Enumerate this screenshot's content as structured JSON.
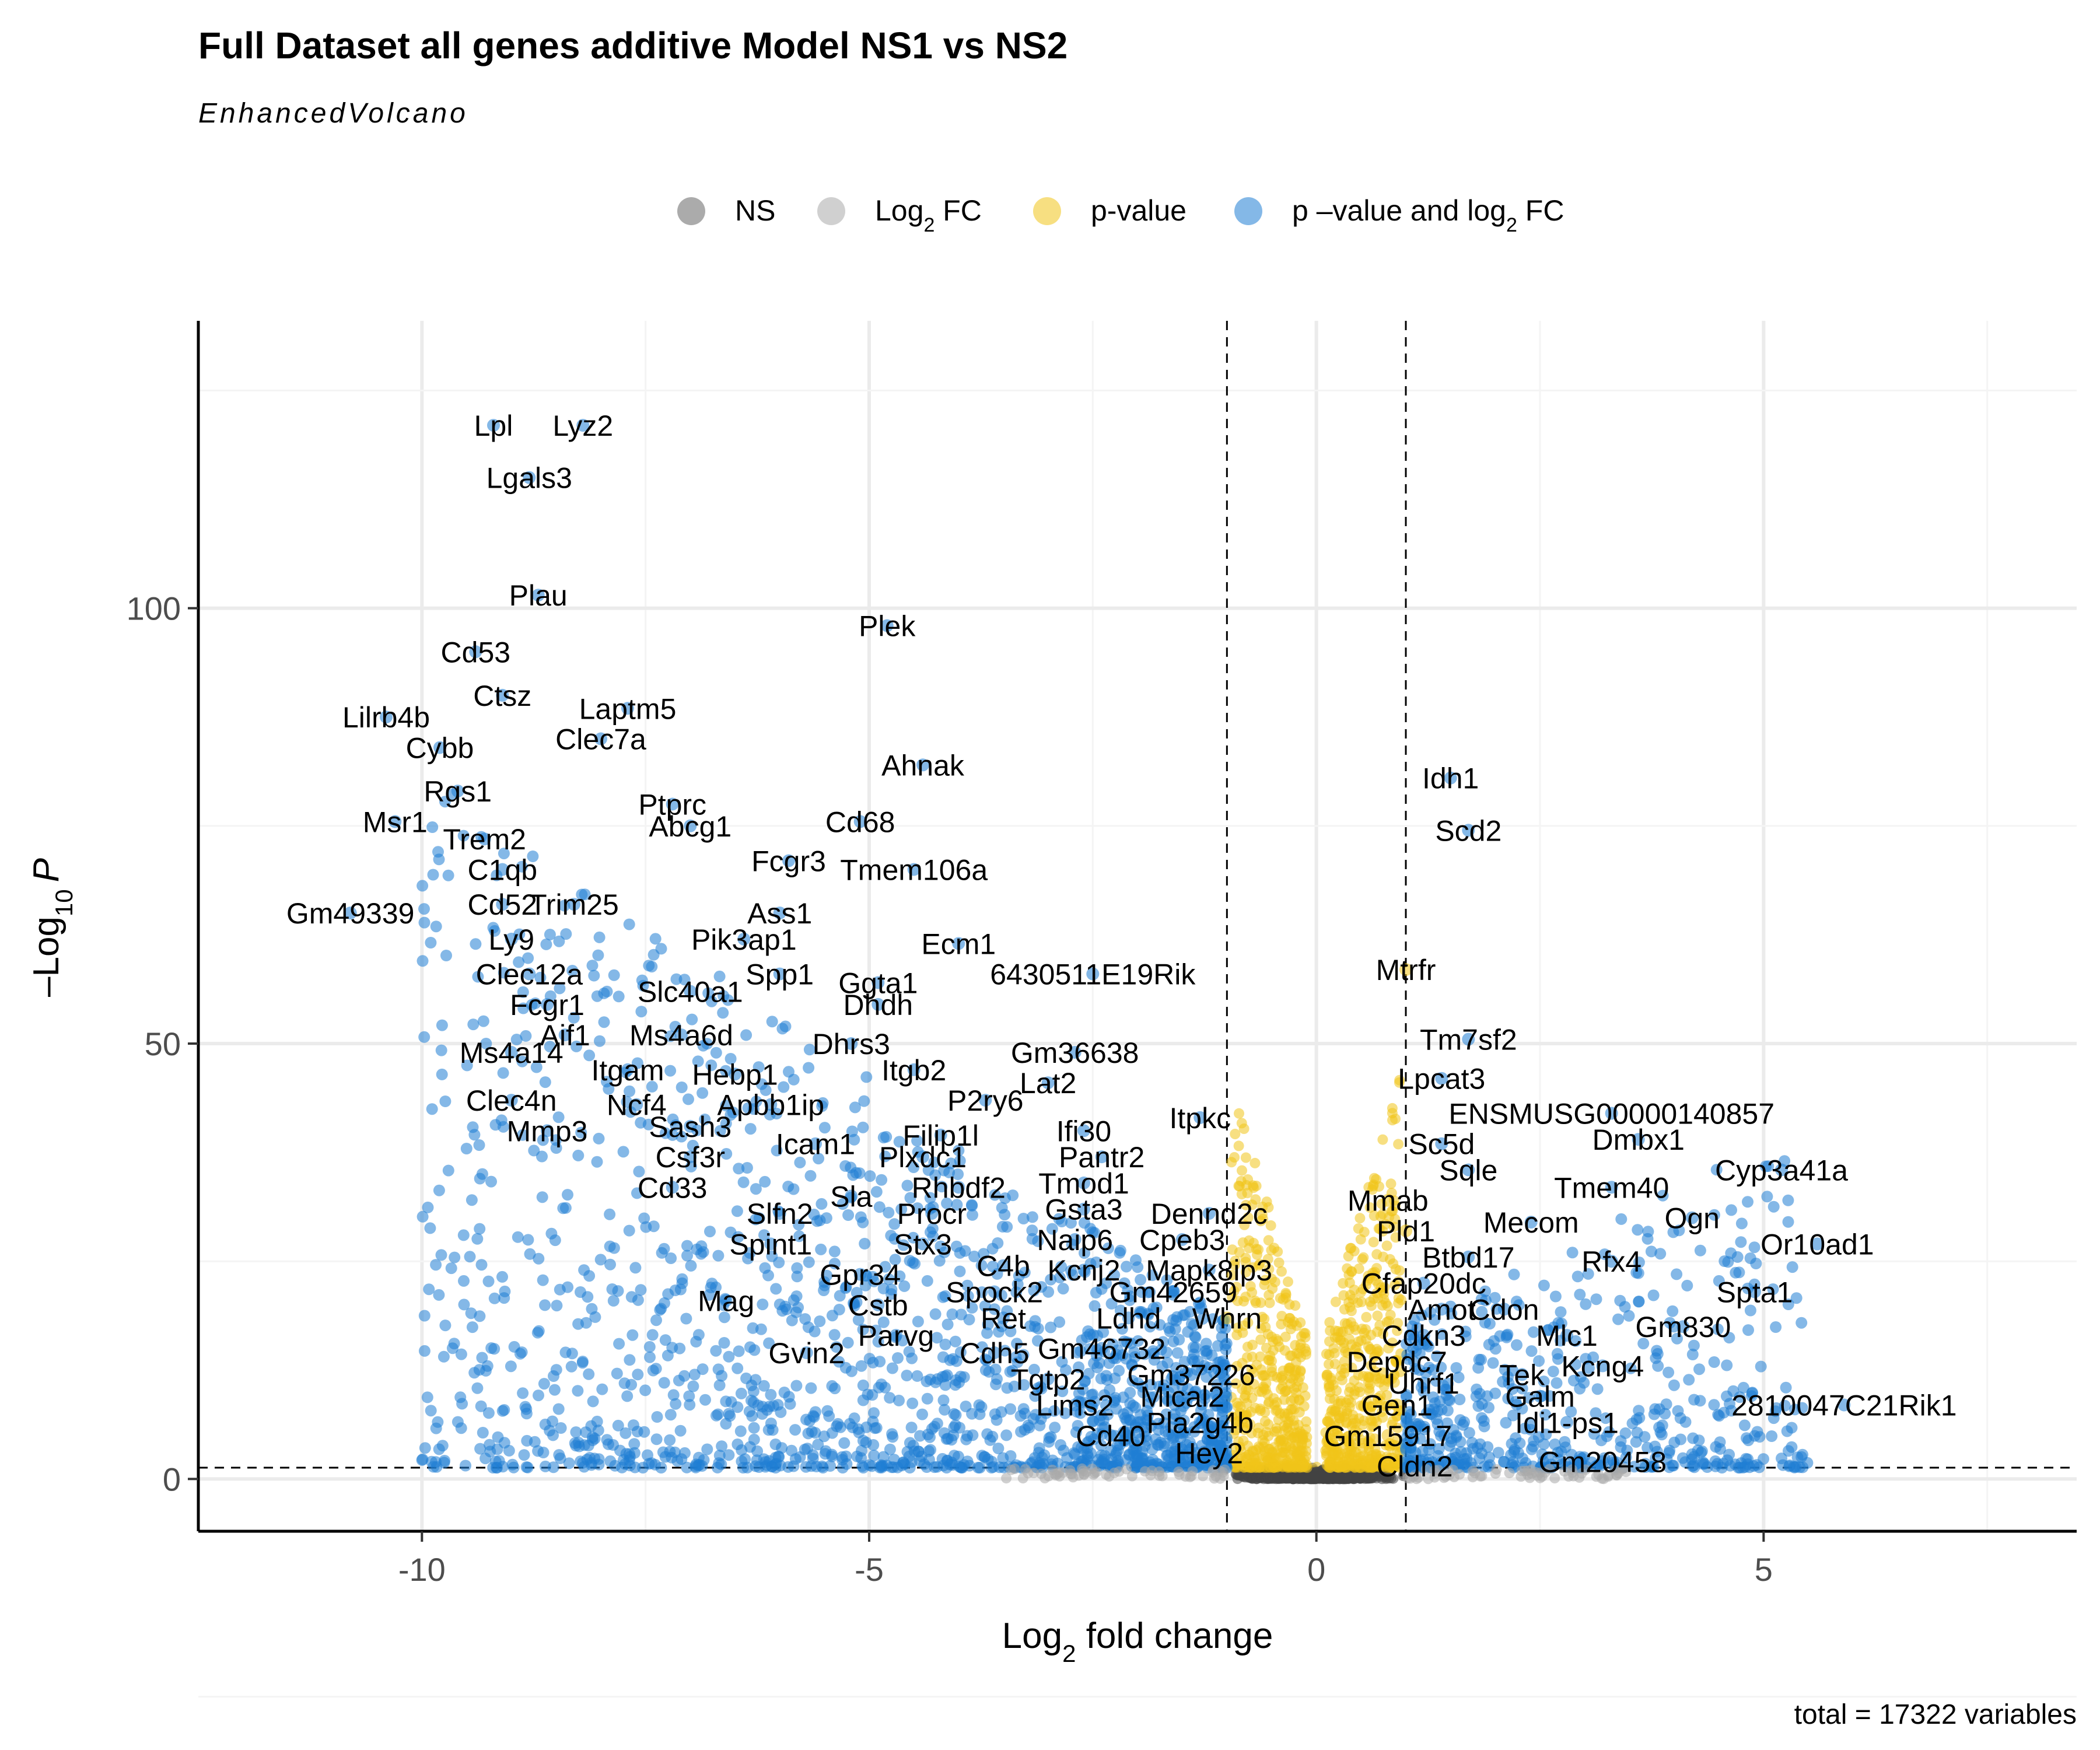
{
  "chart_data": {
    "type": "scatter",
    "title": "Full Dataset all genes additive Model NS1 vs NS2",
    "subtitle": "EnhancedVolcano",
    "caption": "total = 17322 variables",
    "xlabel_main": "Log",
    "xlabel_sub": "2",
    "xlabel_rest": " fold change",
    "ylabel_prefix": "–Log",
    "ylabel_sub": "10",
    "ylabel_var": "P",
    "xlim": [
      -12.5,
      8.5
    ],
    "ylim": [
      -6,
      133
    ],
    "xticks": [
      -10,
      -5,
      0,
      5
    ],
    "xtick_labels": [
      "-10",
      "-5",
      "0",
      "5"
    ],
    "yticks": [
      0,
      50,
      100
    ],
    "ytick_labels": [
      "0",
      "50",
      "100"
    ],
    "fc_cutoff": 1,
    "p_cutoff_neglog10": 1.3,
    "grid": true,
    "legend_position": "top",
    "legend": [
      {
        "key": "NS",
        "label": "NS",
        "sub": "",
        "rest": "",
        "color": "#444444"
      },
      {
        "key": "FC",
        "label": "Log",
        "sub": "2",
        "rest": " FC",
        "color": "#a9a9a9"
      },
      {
        "key": "P",
        "label": "p-value",
        "sub": "",
        "rest": "",
        "color": "#f0c419"
      },
      {
        "key": "FCP",
        "label": "p –value and log",
        "sub": "2",
        "rest": " FC",
        "color": "#1f7ed3"
      }
    ],
    "colors": {
      "NS": "#444444",
      "FC": "#a9a9a9",
      "P": "#f0c419",
      "FCP": "#1f7ed3"
    },
    "labeled_points": [
      {
        "gene": "Lpl",
        "x": -9.2,
        "y": 121.0
      },
      {
        "gene": "Lyz2",
        "x": -8.2,
        "y": 121.0
      },
      {
        "gene": "Lgals3",
        "x": -8.8,
        "y": 115.0
      },
      {
        "gene": "Plau",
        "x": -8.7,
        "y": 101.5
      },
      {
        "gene": "Cd53",
        "x": -9.4,
        "y": 95.0
      },
      {
        "gene": "Plek",
        "x": -4.8,
        "y": 98.0
      },
      {
        "gene": "Ctsz",
        "x": -9.1,
        "y": 90.0
      },
      {
        "gene": "Laptm5",
        "x": -7.7,
        "y": 88.5
      },
      {
        "gene": "Lilrb4b",
        "x": -10.4,
        "y": 87.5
      },
      {
        "gene": "Cybb",
        "x": -9.8,
        "y": 84.0
      },
      {
        "gene": "Clec7a",
        "x": -8.0,
        "y": 85.0
      },
      {
        "gene": "Ahnak",
        "x": -4.4,
        "y": 82.0
      },
      {
        "gene": "Idh1",
        "x": 1.5,
        "y": 80.5
      },
      {
        "gene": "Rgs1",
        "x": -9.6,
        "y": 79.0
      },
      {
        "gene": "Ptprc",
        "x": -7.2,
        "y": 77.5
      },
      {
        "gene": "Msr1",
        "x": -10.3,
        "y": 75.5
      },
      {
        "gene": "Cd68",
        "x": -5.1,
        "y": 75.5
      },
      {
        "gene": "Abcg1",
        "x": -7.0,
        "y": 75.0
      },
      {
        "gene": "Trem2",
        "x": -9.3,
        "y": 73.5
      },
      {
        "gene": "Scd2",
        "x": 1.7,
        "y": 74.5
      },
      {
        "gene": "Fcgr3",
        "x": -5.9,
        "y": 71.0
      },
      {
        "gene": "Tmem106a",
        "x": -4.5,
        "y": 70.0
      },
      {
        "gene": "C1qb",
        "x": -9.1,
        "y": 70.0
      },
      {
        "gene": "Cd52",
        "x": -9.1,
        "y": 66.0
      },
      {
        "gene": "Trim25",
        "x": -8.3,
        "y": 66.0
      },
      {
        "gene": "Gm49339",
        "x": -10.8,
        "y": 65.0
      },
      {
        "gene": "Ass1",
        "x": -6.0,
        "y": 65.0
      },
      {
        "gene": "Ly9",
        "x": -9.0,
        "y": 62.0
      },
      {
        "gene": "Pik3ap1",
        "x": -6.4,
        "y": 62.0
      },
      {
        "gene": "Ecm1",
        "x": -4.0,
        "y": 61.5
      },
      {
        "gene": "Clec12a",
        "x": -8.8,
        "y": 58.0
      },
      {
        "gene": "Spp1",
        "x": -6.0,
        "y": 58.0
      },
      {
        "gene": "Ggta1",
        "x": -4.9,
        "y": 57.0
      },
      {
        "gene": "6430511E19Rik",
        "x": -2.5,
        "y": 58.0
      },
      {
        "gene": "Mtrfr",
        "x": 1.0,
        "y": 58.5
      },
      {
        "gene": "Slc40a1",
        "x": -7.0,
        "y": 56.0
      },
      {
        "gene": "Fcgr1",
        "x": -8.6,
        "y": 54.5
      },
      {
        "gene": "Dhdh",
        "x": -4.9,
        "y": 54.5
      },
      {
        "gene": "Aif1",
        "x": -8.4,
        "y": 51.0
      },
      {
        "gene": "Ms4a6d",
        "x": -7.1,
        "y": 51.0
      },
      {
        "gene": "Dhrs3",
        "x": -5.2,
        "y": 50.0
      },
      {
        "gene": "Tm7sf2",
        "x": 1.7,
        "y": 50.5
      },
      {
        "gene": "Ms4a14",
        "x": -9.0,
        "y": 49.0
      },
      {
        "gene": "Gm36638",
        "x": -2.7,
        "y": 49.0
      },
      {
        "gene": "Itgam",
        "x": -7.7,
        "y": 47.0
      },
      {
        "gene": "Hebp1",
        "x": -6.5,
        "y": 46.5
      },
      {
        "gene": "Itgb2",
        "x": -4.5,
        "y": 47.0
      },
      {
        "gene": "Lpcat3",
        "x": 1.4,
        "y": 46.0
      },
      {
        "gene": "Lat2",
        "x": -3.0,
        "y": 45.5
      },
      {
        "gene": "Clec4n",
        "x": -9.0,
        "y": 43.5
      },
      {
        "gene": "Ncf4",
        "x": -7.6,
        "y": 43.0
      },
      {
        "gene": "Apbb1ip",
        "x": -6.1,
        "y": 43.0
      },
      {
        "gene": "P2ry6",
        "x": -3.7,
        "y": 43.5
      },
      {
        "gene": "ENSMUSG00000140857",
        "x": 3.3,
        "y": 42.0
      },
      {
        "gene": "Itpkc",
        "x": -1.3,
        "y": 41.5
      },
      {
        "gene": "Mmp3",
        "x": -8.6,
        "y": 40.0
      },
      {
        "gene": "Sash3",
        "x": -7.0,
        "y": 40.5
      },
      {
        "gene": "Ifi30",
        "x": -2.6,
        "y": 40.0
      },
      {
        "gene": "Filip1l",
        "x": -4.2,
        "y": 39.5
      },
      {
        "gene": "Dmbx1",
        "x": 3.6,
        "y": 39.0
      },
      {
        "gene": "Icam1",
        "x": -5.6,
        "y": 38.5
      },
      {
        "gene": "Sc5d",
        "x": 1.4,
        "y": 38.5
      },
      {
        "gene": "Csf3r",
        "x": -7.0,
        "y": 37.0
      },
      {
        "gene": "Plxdc1",
        "x": -4.4,
        "y": 37.0
      },
      {
        "gene": "Pantr2",
        "x": -2.4,
        "y": 37.0
      },
      {
        "gene": "Cyp3a41a",
        "x": 5.2,
        "y": 35.5
      },
      {
        "gene": "Sqle",
        "x": 1.7,
        "y": 35.5
      },
      {
        "gene": "Tmem40",
        "x": 3.3,
        "y": 33.5
      },
      {
        "gene": "Cd33",
        "x": -7.2,
        "y": 33.5
      },
      {
        "gene": "Tmod1",
        "x": -2.6,
        "y": 34.0
      },
      {
        "gene": "Rhbdf2",
        "x": -4.0,
        "y": 33.5
      },
      {
        "gene": "Sla",
        "x": -5.2,
        "y": 32.5
      },
      {
        "gene": "Gsta3",
        "x": -2.6,
        "y": 31.0
      },
      {
        "gene": "Dennd2c",
        "x": -1.2,
        "y": 30.5
      },
      {
        "gene": "Mmab",
        "x": 0.8,
        "y": 32.0
      },
      {
        "gene": "Slfn2",
        "x": -6.0,
        "y": 30.5
      },
      {
        "gene": "Procr",
        "x": -4.3,
        "y": 30.5
      },
      {
        "gene": "Mecom",
        "x": 2.4,
        "y": 29.5
      },
      {
        "gene": "Ogn",
        "x": 4.2,
        "y": 30.0
      },
      {
        "gene": "Pld1",
        "x": 1.0,
        "y": 28.5
      },
      {
        "gene": "Spint1",
        "x": -6.1,
        "y": 27.0
      },
      {
        "gene": "Stx3",
        "x": -4.4,
        "y": 27.0
      },
      {
        "gene": "Naip6",
        "x": -2.7,
        "y": 27.5
      },
      {
        "gene": "Cpeb3",
        "x": -1.5,
        "y": 27.5
      },
      {
        "gene": "Or10ad1",
        "x": 5.6,
        "y": 27.0
      },
      {
        "gene": "Btbd17",
        "x": 1.7,
        "y": 25.5
      },
      {
        "gene": "C4b",
        "x": -3.5,
        "y": 24.5
      },
      {
        "gene": "Kcnj2",
        "x": -2.6,
        "y": 24.0
      },
      {
        "gene": "Mapk8ip3",
        "x": -1.2,
        "y": 24.0
      },
      {
        "gene": "Rfx4",
        "x": 3.3,
        "y": 25.0
      },
      {
        "gene": "Gpr34",
        "x": -5.1,
        "y": 23.5
      },
      {
        "gene": "Cfap20dc",
        "x": 1.2,
        "y": 22.5
      },
      {
        "gene": "Spock2",
        "x": -3.6,
        "y": 21.5
      },
      {
        "gene": "Gm42659",
        "x": -1.6,
        "y": 21.5
      },
      {
        "gene": "Spta1",
        "x": 4.9,
        "y": 21.5
      },
      {
        "gene": "Mag",
        "x": -6.6,
        "y": 20.5
      },
      {
        "gene": "Cstb",
        "x": -4.9,
        "y": 20.0
      },
      {
        "gene": "Amot",
        "x": 1.4,
        "y": 19.5
      },
      {
        "gene": "Cdon",
        "x": 2.1,
        "y": 19.5
      },
      {
        "gene": "Ret",
        "x": -3.5,
        "y": 18.5
      },
      {
        "gene": "Ldhd",
        "x": -2.1,
        "y": 18.5
      },
      {
        "gene": "Whrn",
        "x": -1.0,
        "y": 18.5
      },
      {
        "gene": "Gm830",
        "x": 4.1,
        "y": 17.5
      },
      {
        "gene": "Parvg",
        "x": -4.7,
        "y": 16.5
      },
      {
        "gene": "Cdkn3",
        "x": 1.2,
        "y": 16.5
      },
      {
        "gene": "Mlc1",
        "x": 2.8,
        "y": 16.5
      },
      {
        "gene": "Gvin2",
        "x": -5.7,
        "y": 14.5
      },
      {
        "gene": "Gm46732",
        "x": -2.4,
        "y": 15.0
      },
      {
        "gene": "Cdh5",
        "x": -3.6,
        "y": 14.5
      },
      {
        "gene": "Depdc7",
        "x": 0.9,
        "y": 13.5
      },
      {
        "gene": "Kcng4",
        "x": 3.2,
        "y": 13.0
      },
      {
        "gene": "Gm37226",
        "x": -1.4,
        "y": 12.0
      },
      {
        "gene": "Tek",
        "x": 2.3,
        "y": 12.0
      },
      {
        "gene": "Tgtp2",
        "x": -3.0,
        "y": 11.5
      },
      {
        "gene": "Uhrf1",
        "x": 1.2,
        "y": 11.0
      },
      {
        "gene": "Mical2",
        "x": -1.5,
        "y": 9.5
      },
      {
        "gene": "Galm",
        "x": 2.5,
        "y": 9.5
      },
      {
        "gene": "Lims2",
        "x": -2.7,
        "y": 8.5
      },
      {
        "gene": "2810047C21Rik1",
        "x": 5.9,
        "y": 8.5
      },
      {
        "gene": "Gen1",
        "x": 0.9,
        "y": 8.5
      },
      {
        "gene": "Pla2g4b",
        "x": -1.3,
        "y": 6.5
      },
      {
        "gene": "Idi1-ps1",
        "x": 2.8,
        "y": 6.5
      },
      {
        "gene": "Cd40",
        "x": -2.3,
        "y": 5.0
      },
      {
        "gene": "Gm15917",
        "x": 0.8,
        "y": 5.0
      },
      {
        "gene": "Hey2",
        "x": -1.2,
        "y": 3.0
      },
      {
        "gene": "Gm20458",
        "x": 3.2,
        "y": 2.0
      },
      {
        "gene": "Cldn2",
        "x": 1.1,
        "y": 1.5
      }
    ]
  }
}
